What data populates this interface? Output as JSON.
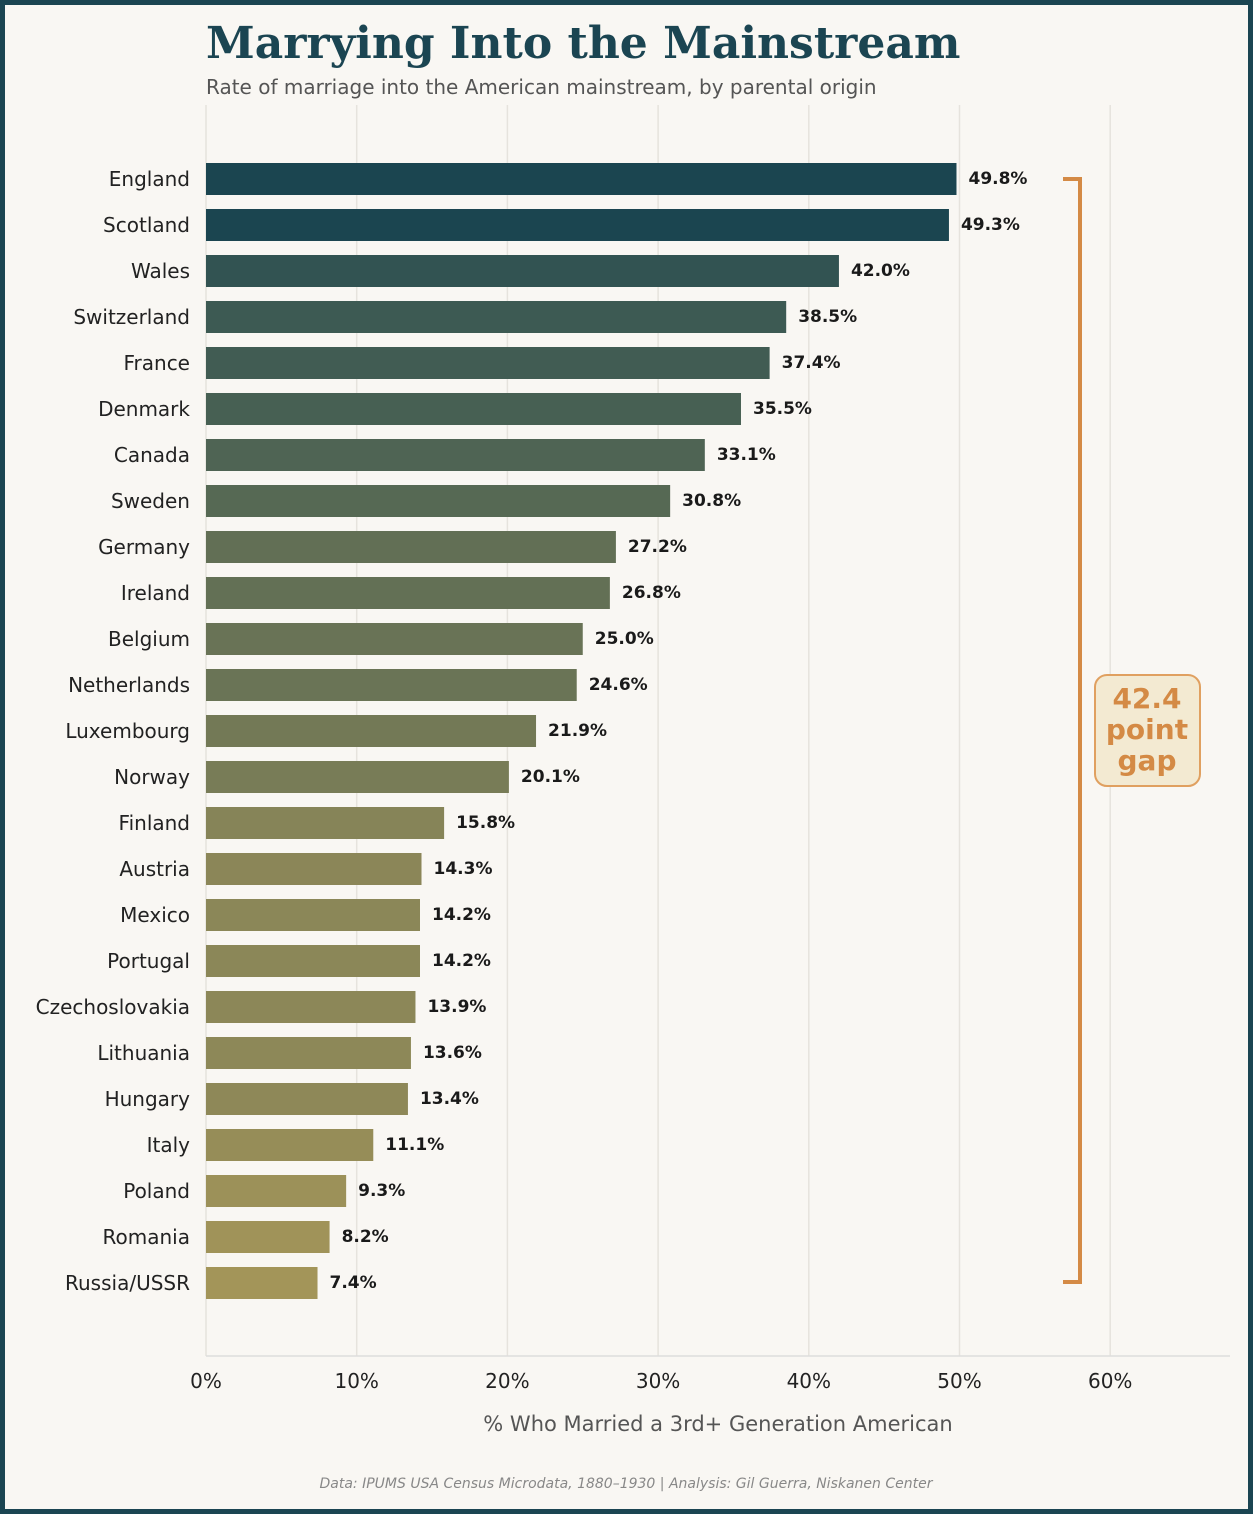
{
  "chart_data": {
    "type": "bar",
    "orientation": "horizontal",
    "title": "Marrying Into the Mainstream",
    "subtitle": "Rate of marriage into the American mainstream, by parental origin",
    "xlabel": "% Who Married a 3rd+ Generation American",
    "ylabel": "",
    "xlim": [
      0,
      68
    ],
    "xticks": [
      0,
      10,
      20,
      30,
      40,
      50,
      60
    ],
    "xtick_labels": [
      "0%",
      "10%",
      "20%",
      "30%",
      "40%",
      "50%",
      "60%"
    ],
    "grid": "vertical",
    "categories": [
      "England",
      "Scotland",
      "Wales",
      "Switzerland",
      "France",
      "Denmark",
      "Canada",
      "Sweden",
      "Germany",
      "Ireland",
      "Belgium",
      "Netherlands",
      "Luxembourg",
      "Norway",
      "Finland",
      "Austria",
      "Mexico",
      "Portugal",
      "Czechoslovakia",
      "Lithuania",
      "Hungary",
      "Italy",
      "Poland",
      "Romania",
      "Russia/USSR"
    ],
    "values": [
      49.8,
      49.3,
      42.0,
      38.5,
      37.4,
      35.5,
      33.1,
      30.8,
      27.2,
      26.8,
      25.0,
      24.6,
      21.9,
      20.1,
      15.8,
      14.3,
      14.2,
      14.2,
      13.9,
      13.6,
      13.4,
      11.1,
      9.3,
      8.2,
      7.4
    ],
    "value_labels": [
      "49.8%",
      "49.3%",
      "42.0%",
      "38.5%",
      "37.4%",
      "35.5%",
      "33.1%",
      "30.8%",
      "27.2%",
      "26.8%",
      "25.0%",
      "24.6%",
      "21.9%",
      "20.1%",
      "15.8%",
      "14.3%",
      "14.2%",
      "14.2%",
      "13.9%",
      "13.6%",
      "13.4%",
      "11.1%",
      "9.3%",
      "8.2%",
      "7.4%"
    ],
    "annotation": {
      "lines": [
        "42.4",
        "point",
        "gap"
      ]
    },
    "footer": "Data: IPUMS USA Census Microdata, 1880–1930  |  Analysis: Gil Guerra, Niskanen Center",
    "colors": {
      "high": "#1b4550",
      "mid": "#5f6e55",
      "low": "#8c8758",
      "lowest": "#a39559",
      "accent": "#d48a45",
      "border": "#1b4552"
    }
  }
}
